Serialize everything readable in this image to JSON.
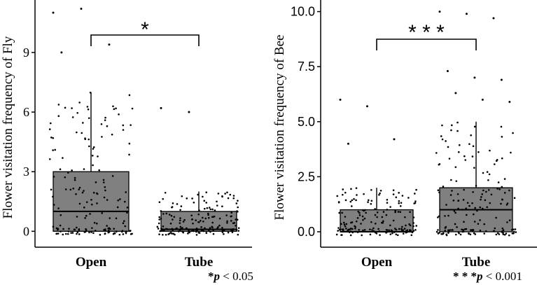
{
  "chart_data": [
    {
      "type": "box",
      "ylabel": "Flower visitation frequency of Fly",
      "categories": [
        "Open",
        "Tube"
      ],
      "yticks": [
        "0",
        "3",
        "6",
        "9"
      ],
      "ylim": [
        -0.8,
        11.5
      ],
      "boxes": [
        {
          "name": "Open",
          "q1": 0,
          "median": 1,
          "q3": 3,
          "whisker_low": 0,
          "whisker_high": 7
        },
        {
          "name": "Tube",
          "q1": 0,
          "median": 0.1,
          "q3": 1,
          "whisker_low": 0,
          "whisker_high": 2
        }
      ],
      "outliers": [
        {
          "category": "Open",
          "values": [
            11,
            11.2,
            9.4,
            9
          ]
        },
        {
          "category": "Tube",
          "values": [
            6.2,
            6
          ]
        }
      ],
      "significance": {
        "label": "*",
        "note_prefix": "*",
        "note_p": "p",
        "note_rest": " < 0.05"
      },
      "fill": "#808080"
    },
    {
      "type": "box",
      "ylabel": "Flower visitation frequency of Bee",
      "categories": [
        "Open",
        "Tube"
      ],
      "yticks": [
        "0.0",
        "2.5",
        "5.0",
        "7.5",
        "10.0"
      ],
      "ylim": [
        -0.7,
        10.4
      ],
      "boxes": [
        {
          "name": "Open",
          "q1": 0,
          "median": 0,
          "q3": 1,
          "whisker_low": 0,
          "whisker_high": 2
        },
        {
          "name": "Tube",
          "q1": 0,
          "median": 1,
          "q3": 2,
          "whisker_low": 0,
          "whisker_high": 5
        }
      ],
      "outliers": [
        {
          "category": "Open",
          "values": [
            6,
            5.7,
            4.2,
            4
          ]
        },
        {
          "category": "Tube",
          "values": [
            10,
            9.9,
            9.7,
            7.3,
            7,
            6.9,
            6.3,
            6,
            5.9
          ]
        }
      ],
      "significance": {
        "label": "* * *",
        "note_prefix": "* * *",
        "note_p": "p",
        "note_rest": " < 0.001"
      },
      "fill": "#808080"
    }
  ]
}
